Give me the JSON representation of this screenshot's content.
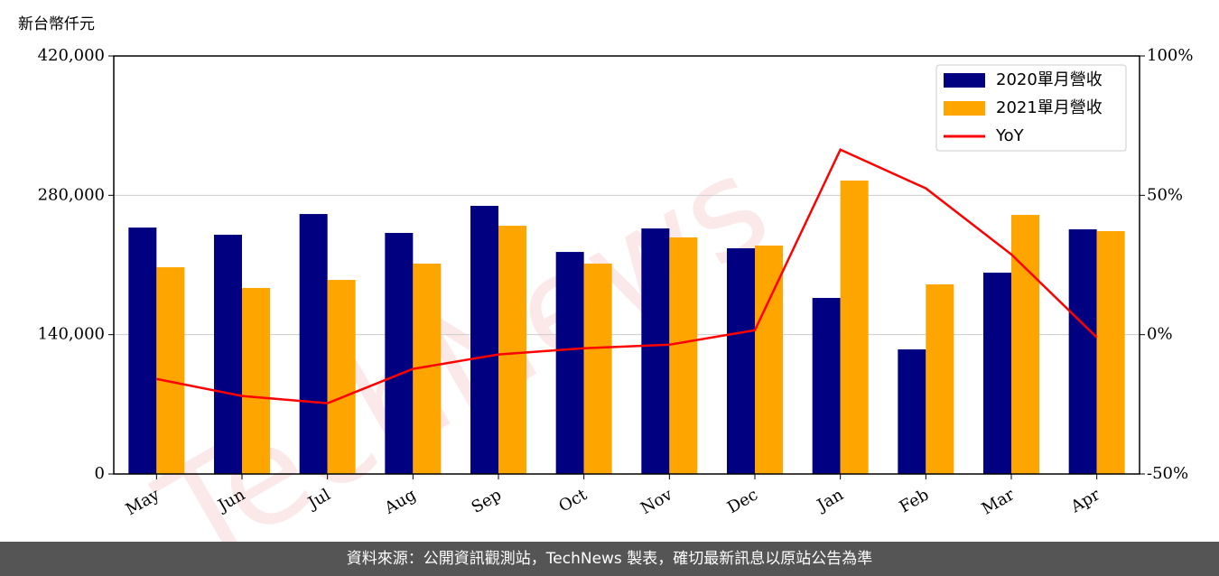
{
  "chart_data": {
    "type": "bar",
    "y_label": "新台幣仟元",
    "watermark": "TechNews",
    "categories": [
      "May",
      "Jun",
      "Jul",
      "Aug",
      "Sep",
      "Oct",
      "Nov",
      "Dec",
      "Jan",
      "Feb",
      "Mar",
      "Apr"
    ],
    "series": [
      {
        "name": "2020單月營收",
        "color": "#000080",
        "values": [
          247600,
          240400,
          261200,
          242200,
          269400,
          223100,
          246700,
          226800,
          176900,
          125200,
          202300,
          245800
        ]
      },
      {
        "name": "2021單月營收",
        "color": "#ffa500",
        "values": [
          207700,
          186900,
          195000,
          211400,
          249400,
          211400,
          237700,
          229500,
          294800,
          190500,
          260300,
          244000
        ]
      },
      {
        "name": "YoY",
        "type": "line",
        "axis": "y2",
        "color": "#ff0000",
        "values": [
          -15.9,
          -22.0,
          -24.6,
          -12.3,
          -7.1,
          -4.9,
          -3.6,
          1.6,
          66.4,
          52.5,
          28.8,
          -1.0
        ]
      }
    ],
    "ylim": [
      0,
      420000
    ],
    "yticks": [
      {
        "value": 0,
        "label": "0"
      },
      {
        "value": 140000,
        "label": "140,000"
      },
      {
        "value": 280000,
        "label": "280,000"
      },
      {
        "value": 420000,
        "label": "420,000"
      }
    ],
    "y2lim": [
      -50,
      100
    ],
    "y2ticks": [
      {
        "value": -50,
        "label": "-50%"
      },
      {
        "value": 0,
        "label": "0%"
      },
      {
        "value": 50,
        "label": "50%"
      },
      {
        "value": 100,
        "label": "100%"
      }
    ],
    "grid": true,
    "legend": "upper right",
    "footer": "資料來源：公開資訊觀測站，TechNews 製表，確切最新訊息以原站公告為準"
  }
}
